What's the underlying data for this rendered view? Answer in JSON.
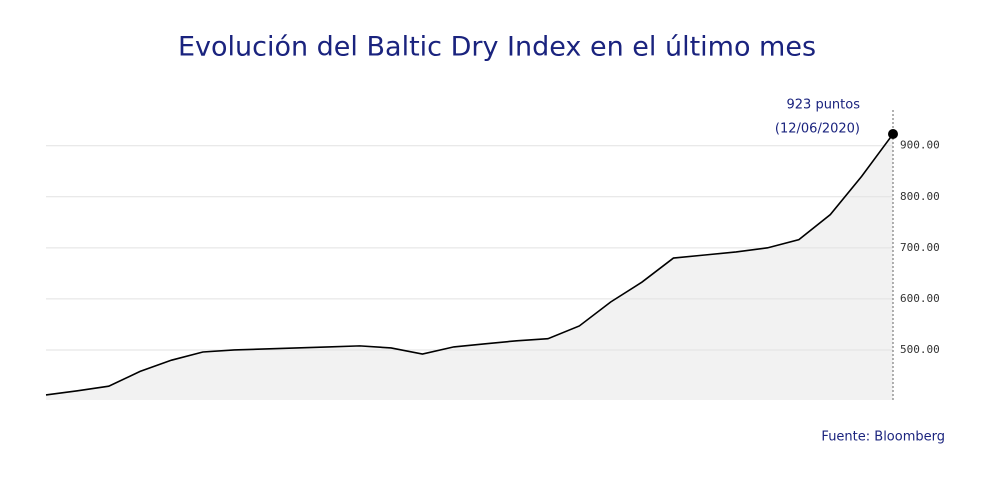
{
  "chart_data": {
    "type": "area",
    "title": "Evolución del Baltic Dry Index en el último mes",
    "annotation": {
      "lines": [
        "923 puntos",
        "(12/06/2020)"
      ]
    },
    "source": "Fuente: Bloomberg",
    "values": [
      412,
      420,
      429,
      458,
      480,
      496,
      500,
      502,
      504,
      506,
      508,
      504,
      492,
      506,
      512,
      518,
      522,
      547,
      594,
      633,
      680,
      686,
      692,
      700,
      716,
      765,
      840,
      923
    ],
    "color": "#000000",
    "fill": "#f2f2f2",
    "title_color": "#1a237e",
    "ylim": [
      402,
      970
    ],
    "yticks": [
      {
        "value": 500,
        "label": "500.00"
      },
      {
        "value": 600,
        "label": "600.00"
      },
      {
        "value": 700,
        "label": "700.00"
      },
      {
        "value": 800,
        "label": "800.00"
      },
      {
        "value": 900,
        "label": "900.00"
      }
    ],
    "grid": true
  }
}
